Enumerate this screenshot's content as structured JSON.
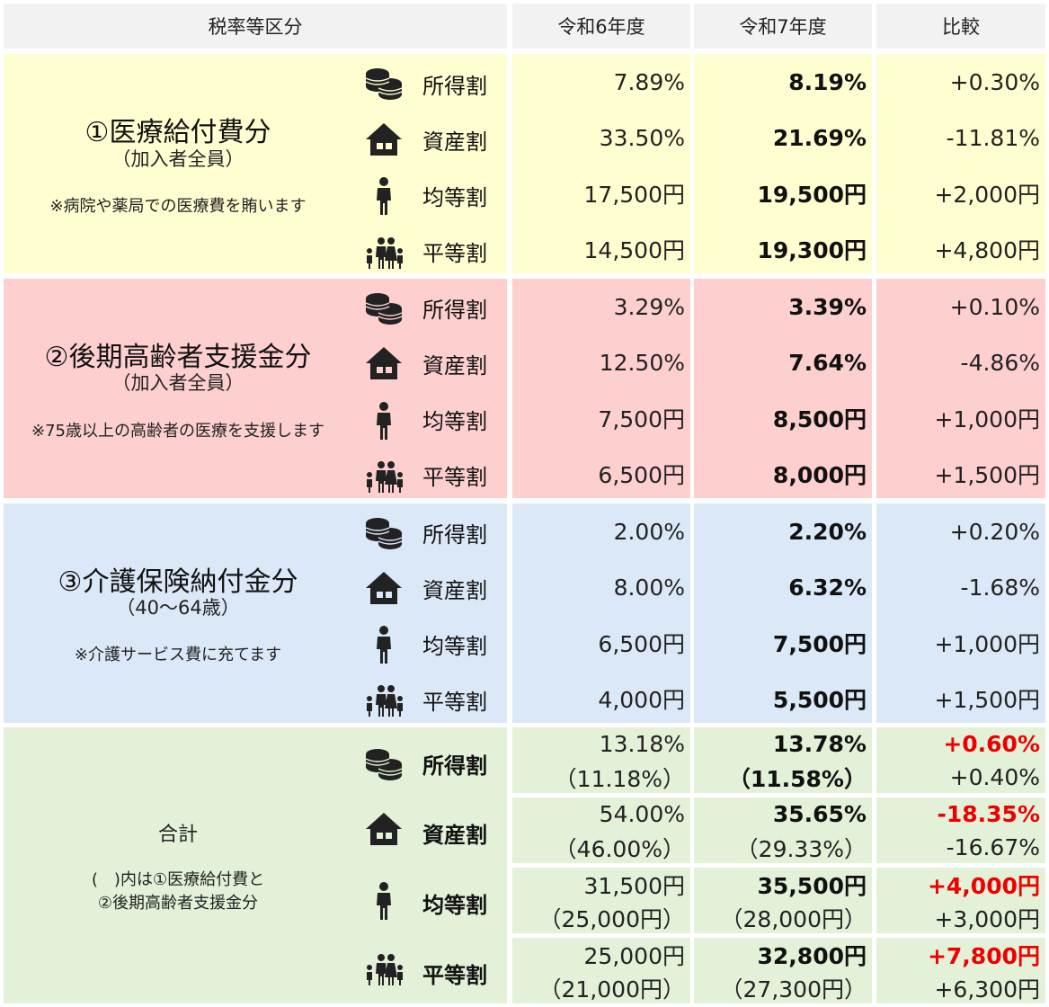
{
  "headers": {
    "category": "税率等区分",
    "r6": "令和6年度",
    "r7": "令和7年度",
    "diff": "比較"
  },
  "rate_types": [
    "所得割",
    "資産割",
    "均等割",
    "平等割"
  ],
  "icons": [
    "coins-icon",
    "house-icon",
    "person-icon",
    "family-icon"
  ],
  "sections": [
    {
      "title": "①医療給付費分",
      "subtitle": "（加入者全員）",
      "note": "※病院や薬局での医療費を賄います",
      "color": "#fffed0",
      "rows": [
        {
          "r6": "7.89%",
          "r7": "8.19%",
          "diff": "+0.30%"
        },
        {
          "r6": "33.50%",
          "r7": "21.69%",
          "diff": "-11.81%"
        },
        {
          "r6": "17,500円",
          "r7": "19,500円",
          "diff": "+2,000円"
        },
        {
          "r6": "14,500円",
          "r7": "19,300円",
          "diff": "+4,800円"
        }
      ]
    },
    {
      "title": "②後期高齢者支援金分",
      "subtitle": "（加入者全員）",
      "note": "※75歳以上の高齢者の医療を支援します",
      "color": "#fdcfcf",
      "rows": [
        {
          "r6": "3.29%",
          "r7": "3.39%",
          "diff": "+0.10%"
        },
        {
          "r6": "12.50%",
          "r7": "7.64%",
          "diff": "-4.86%"
        },
        {
          "r6": "7,500円",
          "r7": "8,500円",
          "diff": "+1,000円"
        },
        {
          "r6": "6,500円",
          "r7": "8,000円",
          "diff": "+1,500円"
        }
      ]
    },
    {
      "title": "③介護保険納付金分",
      "subtitle": "（40～64歳）",
      "note": "※介護サービス費に充てます",
      "color": "#dbe8f7",
      "rows": [
        {
          "r6": "2.00%",
          "r7": "2.20%",
          "diff": "+0.20%"
        },
        {
          "r6": "8.00%",
          "r7": "6.32%",
          "diff": "-1.68%"
        },
        {
          "r6": "6,500円",
          "r7": "7,500円",
          "diff": "+1,000円"
        },
        {
          "r6": "4,000円",
          "r7": "5,500円",
          "diff": "+1,500円"
        }
      ]
    }
  ],
  "total": {
    "title": "合計",
    "note_line1": "(　)内は①医療給付費と",
    "note_line2": "②後期高齢者支援金分",
    "color": "#e2f1d8",
    "highlight_color": "#ee0000",
    "rows": [
      {
        "r6": "13.18%",
        "r6_sub": "（11.18%）",
        "r7": "13.78%",
        "r7_sub": "（11.58%）",
        "diff": "+0.60%",
        "diff_sub": "+0.40%"
      },
      {
        "r6": "54.00%",
        "r6_sub": "（46.00%）",
        "r7": "35.65%",
        "r7_sub": "（29.33%）",
        "diff": "-18.35%",
        "diff_sub": "-16.67%"
      },
      {
        "r6": "31,500円",
        "r6_sub": "（25,000円）",
        "r7": "35,500円",
        "r7_sub": "（28,000円）",
        "diff": "+4,000円",
        "diff_sub": "+3,000円"
      },
      {
        "r6": "25,000円",
        "r6_sub": "（21,000円）",
        "r7": "32,800円",
        "r7_sub": "（27,300円）",
        "diff": "+7,800円",
        "diff_sub": "+6,300円"
      }
    ]
  }
}
